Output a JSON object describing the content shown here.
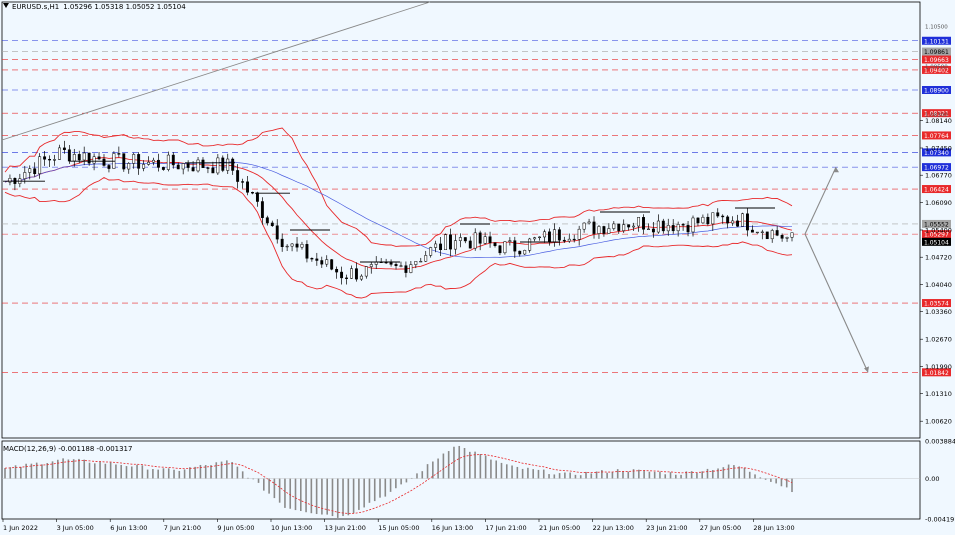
{
  "header": {
    "symbol": "EURUSD.s,H1",
    "open": "1.05296",
    "high": "1.05318",
    "low": "1.05052",
    "close": "1.05104",
    "menu_icon": "chevron-down-icon"
  },
  "macd": {
    "label": "MACD(12,26,9) -0.001188 -0.001317",
    "scale_labels": [
      "0.003884",
      "0.00",
      "-0.004191"
    ]
  },
  "price_axis": {
    "ticks": [
      "1.08140",
      "1.07450",
      "1.06770",
      "1.06090",
      "1.05400",
      "1.04720",
      "1.04040",
      "1.03360",
      "1.02670",
      "1.01990",
      "1.01310",
      "1.00620"
    ],
    "ticks_top": [
      "1.10500",
      "1.09500",
      "1.08300"
    ]
  },
  "level_tags": [
    {
      "value": "1.09663",
      "color": "#e8292b"
    },
    {
      "value": "1.05552",
      "color": "#a5a5a5"
    },
    {
      "value": "1.10131",
      "color": "#1f2fd9"
    },
    {
      "value": "1.09861",
      "color": "#a5a5a5"
    },
    {
      "value": "1.09402",
      "color": "#e8292b"
    },
    {
      "value": "1.08900",
      "color": "#1f2fd9"
    },
    {
      "value": "1.08321",
      "color": "#e8292b"
    },
    {
      "value": "1.07764",
      "color": "#e8292b"
    },
    {
      "value": "1.07340",
      "color": "#1f2fd9"
    },
    {
      "value": "1.06972",
      "color": "#1f2fd9"
    },
    {
      "value": "1.06424",
      "color": "#e8292b"
    },
    {
      "value": "1.05297",
      "color": "#e8292b"
    },
    {
      "value": "1.05104",
      "color": "#000000"
    },
    {
      "value": "1.03574",
      "color": "#e8292b"
    },
    {
      "value": "1.01842",
      "color": "#e8292b"
    }
  ],
  "time_axis": {
    "labels": [
      "1 Jun 2022",
      "3 Jun 05:00",
      "6 Jun 13:00",
      "7 Jun 21:00",
      "9 Jun 05:00",
      "10 Jun 13:00",
      "13 Jun 21:00",
      "15 Jun 05:00",
      "16 Jun 13:00",
      "17 Jun 21:00",
      "21 Jun 05:00",
      "22 Jun 13:00",
      "23 Jun 21:00",
      "27 Jun 05:00",
      "28 Jun 13:00"
    ]
  },
  "colors": {
    "background": "#f0f8ff",
    "bollinger": "#e8292b",
    "moving_average": "#4a5de0",
    "trendline": "#8a8a8a",
    "candles": "#000000",
    "macd_histogram": "#8a8a8a",
    "macd_signal": "#e8292b",
    "support_resistance_red": "#e8292b",
    "support_resistance_blue": "#1f2fd9"
  },
  "chart_data": {
    "type": "line",
    "instrument": "EURUSD.s",
    "timeframe": "H1",
    "x": [
      "1 Jun 2022",
      "3 Jun 05:00",
      "6 Jun 13:00",
      "7 Jun 21:00",
      "9 Jun 05:00",
      "10 Jun 13:00",
      "13 Jun 21:00",
      "15 Jun 05:00",
      "16 Jun 13:00",
      "17 Jun 21:00",
      "21 Jun 05:00",
      "22 Jun 13:00",
      "23 Jun 21:00",
      "27 Jun 05:00",
      "28 Jun 13:00"
    ],
    "series": [
      {
        "values": [
          1.066,
          1.0735,
          1.071,
          1.0705,
          1.07,
          1.0505,
          1.043,
          1.0445,
          1.052,
          1.0495,
          1.0535,
          1.056,
          1.0555,
          1.057,
          1.0515
        ]
      }
    ],
    "ylim": [
      1.002,
      1.111
    ],
    "forecast_arrows": [
      {
        "from": 1.053,
        "to": 1.0697
      },
      {
        "from": 1.053,
        "to": 1.0184
      }
    ],
    "macd": {
      "ylim": [
        -0.004191,
        0.003884
      ],
      "histogram": [
        0.001,
        0.002,
        0.0015,
        0.0008,
        0.0018,
        -0.003,
        -0.004,
        -0.001,
        0.0035,
        0.0012,
        0.0004,
        0.0009,
        0.0005,
        0.0014,
        -0.0012
      ]
    }
  }
}
